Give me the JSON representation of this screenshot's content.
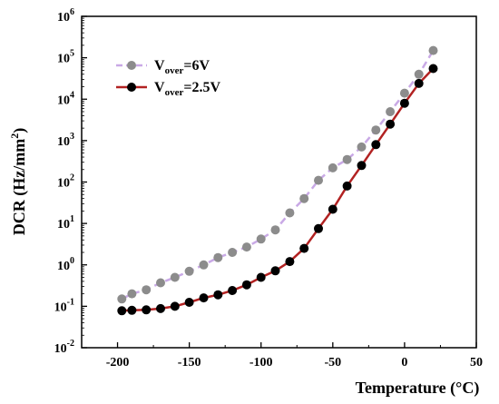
{
  "chart_data": {
    "type": "line",
    "title": "",
    "xlabel": "Temperature (°C)",
    "ylabel_main": "DCR (Hz/mm",
    "ylabel_sup": "2",
    "ylabel_end": ")",
    "xlim": [
      -225,
      50
    ],
    "ylim_log10": [
      -2,
      6
    ],
    "y_scale": "log",
    "x_ticks": [
      -200,
      -150,
      -100,
      -50,
      0,
      50
    ],
    "x_tick_labels": [
      "-200",
      "-150",
      "-100",
      "-50",
      "0",
      "50"
    ],
    "y_ticks_exp": [
      -2,
      -1,
      0,
      1,
      2,
      3,
      4,
      5,
      6
    ],
    "y_tick_base": "10",
    "y_tick_exps": [
      "-2",
      "-1",
      "0",
      "1",
      "2",
      "3",
      "4",
      "5",
      "6"
    ],
    "grid": false,
    "legend_position": "top-left",
    "series": [
      {
        "legend_main": "V",
        "legend_sub": "over",
        "legend_tail": "=6V",
        "line_color": "#c9a9e6",
        "marker_color": "#8c8c8c",
        "line_style": "dashed",
        "x": [
          -197,
          -190,
          -180,
          -170,
          -160,
          -150,
          -140,
          -130,
          -120,
          -110,
          -100,
          -90,
          -80,
          -70,
          -60,
          -50,
          -40,
          -30,
          -20,
          -10,
          0,
          10,
          20
        ],
        "y": [
          0.15,
          0.2,
          0.25,
          0.37,
          0.5,
          0.7,
          1.0,
          1.5,
          2.0,
          2.7,
          4.2,
          7.0,
          18,
          40,
          110,
          220,
          350,
          700,
          1800,
          5000,
          14000,
          40000,
          150000
        ]
      },
      {
        "legend_main": "V",
        "legend_sub": "over",
        "legend_tail": "=2.5V",
        "line_color": "#b22222",
        "marker_color": "#000000",
        "line_style": "solid",
        "x": [
          -197,
          -190,
          -180,
          -170,
          -160,
          -150,
          -140,
          -130,
          -120,
          -110,
          -100,
          -90,
          -80,
          -70,
          -60,
          -50,
          -40,
          -30,
          -20,
          -10,
          0,
          10,
          20
        ],
        "y": [
          0.078,
          0.08,
          0.082,
          0.088,
          0.1,
          0.125,
          0.16,
          0.19,
          0.24,
          0.33,
          0.5,
          0.72,
          1.2,
          2.5,
          7.5,
          22,
          80,
          250,
          800,
          2500,
          8000,
          24000,
          55000
        ]
      }
    ]
  }
}
